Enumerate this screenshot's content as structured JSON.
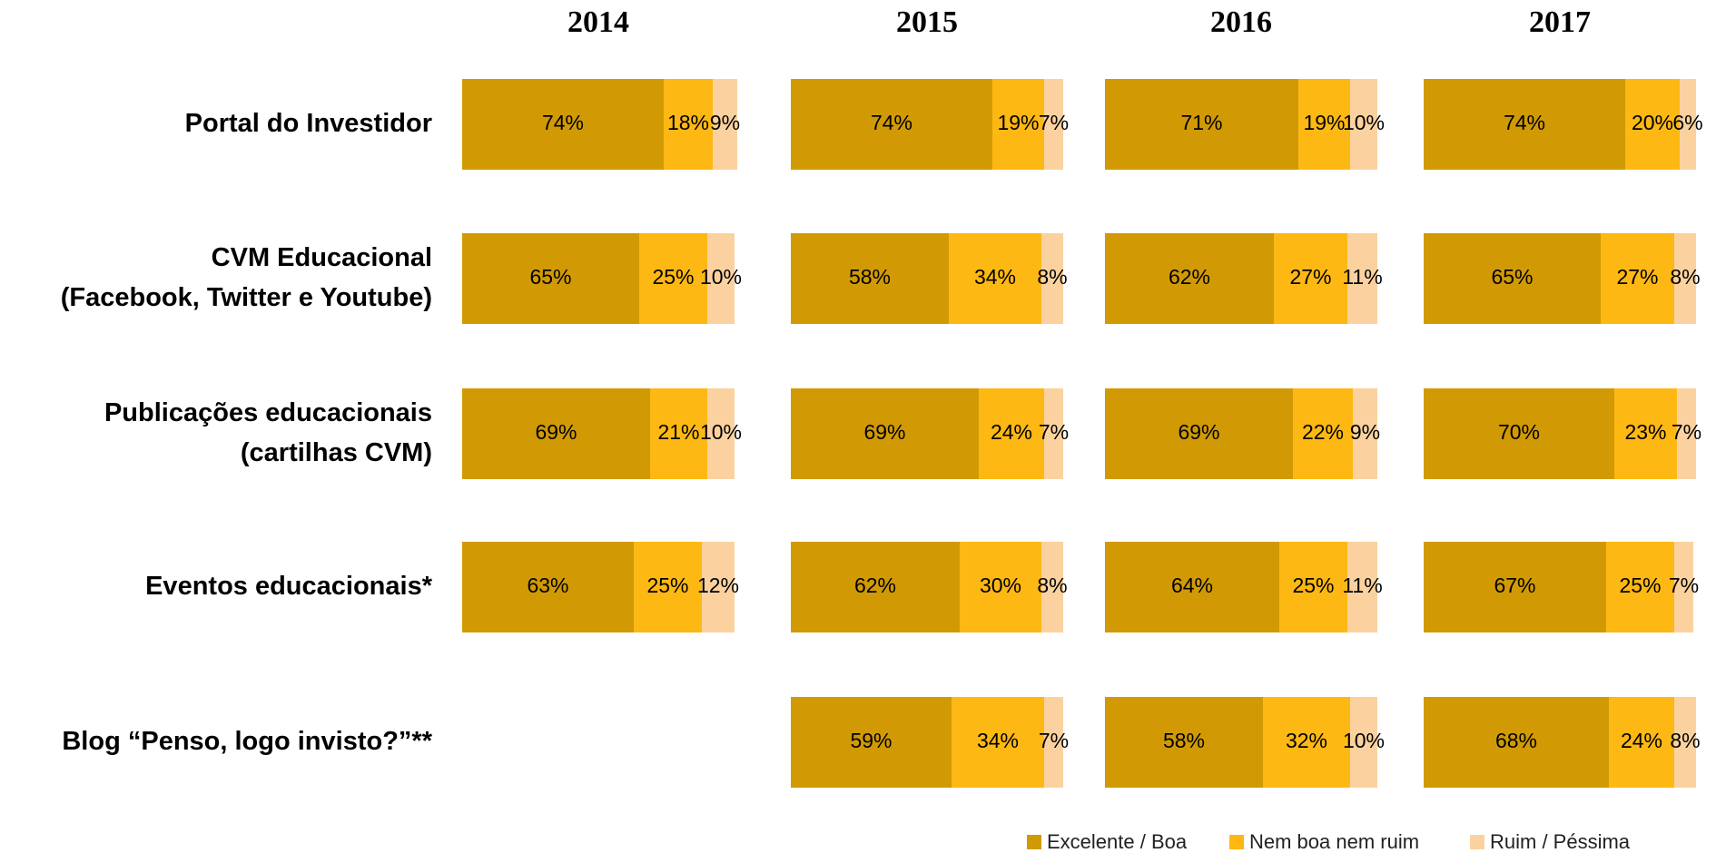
{
  "chart_data": {
    "type": "stacked-bar",
    "categories": [
      "Portal do Investidor",
      "CVM Educacional\n(Facebook, Twitter e Youtube)",
      "Publicações educacionais\n(cartilhas CVM)",
      "Eventos educacionais*",
      "Blog “Penso, logo invisto?”**"
    ],
    "series": [
      {
        "name": "Excelente / Boa",
        "color": "#d19a04"
      },
      {
        "name": "Nem boa nem ruim",
        "color": "#fdb813"
      },
      {
        "name": "Ruim / Péssima",
        "color": "#fbd29f"
      }
    ],
    "xlim": [
      0,
      100
    ],
    "panels": [
      {
        "title": "2014",
        "values": [
          [
            74,
            18,
            9
          ],
          [
            65,
            25,
            10
          ],
          [
            69,
            21,
            10
          ],
          [
            63,
            25,
            12
          ],
          null
        ],
        "value_labels": [
          [
            "74%",
            "18%",
            "9%"
          ],
          [
            "65%",
            "25%",
            "10%"
          ],
          [
            "69%",
            "21%",
            "10%"
          ],
          [
            "63%",
            "25%",
            "12%"
          ],
          null
        ]
      },
      {
        "title": "2015",
        "values": [
          [
            74,
            19,
            7
          ],
          [
            58,
            34,
            8
          ],
          [
            69,
            24,
            7
          ],
          [
            62,
            30,
            8
          ],
          [
            59,
            34,
            7
          ]
        ],
        "value_labels": [
          [
            "74%",
            "19%",
            "7%"
          ],
          [
            "58%",
            "34%",
            "8%"
          ],
          [
            "69%",
            "24%",
            "7%"
          ],
          [
            "62%",
            "30%",
            "8%"
          ],
          [
            "59%",
            "34%",
            "7%"
          ]
        ]
      },
      {
        "title": "2016",
        "values": [
          [
            71,
            19,
            10
          ],
          [
            62,
            27,
            11
          ],
          [
            69,
            22,
            9
          ],
          [
            64,
            25,
            11
          ],
          [
            58,
            32,
            10
          ]
        ],
        "value_labels": [
          [
            "71%",
            "19%",
            "10%"
          ],
          [
            "62%",
            "27%",
            "11%"
          ],
          [
            "69%",
            "22%",
            "9%"
          ],
          [
            "64%",
            "25%",
            "11%"
          ],
          [
            "58%",
            "32%",
            "10%"
          ]
        ]
      },
      {
        "title": "2017",
        "values": [
          [
            74,
            20,
            6
          ],
          [
            65,
            27,
            8
          ],
          [
            70,
            23,
            7
          ],
          [
            67,
            25,
            7
          ],
          [
            68,
            24,
            8
          ]
        ],
        "value_labels": [
          [
            "74%",
            "20%",
            "6%"
          ],
          [
            "65%",
            "27%",
            "8%"
          ],
          [
            "70%",
            "23%",
            "7%"
          ],
          [
            "67%",
            "25%",
            "7%"
          ],
          [
            "68%",
            "24%",
            "8%"
          ]
        ]
      }
    ]
  }
}
